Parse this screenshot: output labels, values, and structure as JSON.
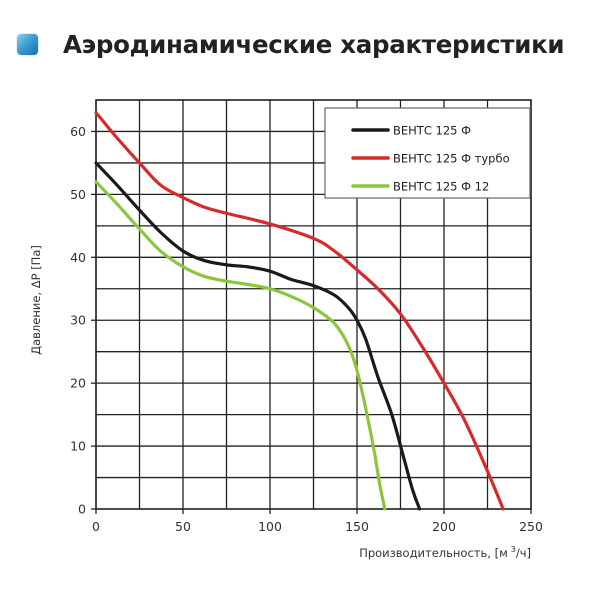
{
  "header": {
    "title": "Аэродинамические характеристики",
    "icon": "blue-square-icon"
  },
  "chart_data": {
    "type": "line",
    "title": "Аэродинамические характеристики",
    "xlabel": "Производительность, [м³/ч]",
    "ylabel": "Давление, ΔP [Па]",
    "xlim": [
      0,
      250
    ],
    "ylim": [
      0,
      65
    ],
    "xticks": [
      0,
      50,
      100,
      150,
      200,
      250
    ],
    "yticks": [
      0,
      10,
      20,
      30,
      40,
      50,
      60
    ],
    "grid": true,
    "grid_x_step": 25,
    "grid_y_step": 5,
    "legend_position": "upper right",
    "series": [
      {
        "name": "ВЕНТС 125 Ф",
        "color": "#1a1a1a",
        "x": [
          0,
          12,
          25,
          37,
          50,
          62,
          75,
          87,
          100,
          112,
          125,
          137,
          145,
          150,
          155,
          162,
          170,
          177,
          182,
          186
        ],
        "y": [
          55,
          51.5,
          47.5,
          44,
          41,
          39.5,
          38.8,
          38.5,
          37.8,
          36.5,
          35.5,
          34,
          32,
          30,
          27,
          21,
          15,
          8,
          3,
          0
        ]
      },
      {
        "name": "ВЕНТС 125 Ф турбо",
        "color": "#d62b2b",
        "x": [
          0,
          12,
          25,
          37,
          50,
          62,
          75,
          100,
          125,
          137,
          150,
          162,
          175,
          187,
          200,
          212,
          225,
          234
        ],
        "y": [
          63,
          59,
          55,
          51.5,
          49.5,
          48,
          47,
          45.3,
          43,
          41,
          38,
          35,
          31,
          26,
          20,
          14,
          6,
          0
        ]
      },
      {
        "name": "ВЕНТС 125 Ф 12",
        "color": "#8cc63f",
        "x": [
          0,
          12,
          25,
          37,
          50,
          62,
          75,
          87,
          100,
          112,
          125,
          137,
          145,
          150,
          155,
          160,
          163,
          166
        ],
        "y": [
          52,
          48.5,
          44.5,
          41,
          38.5,
          37,
          36.2,
          35.7,
          35,
          33.8,
          32,
          29.5,
          26,
          22,
          16,
          9,
          4,
          0
        ]
      }
    ]
  },
  "legend": {
    "items": [
      {
        "label": "ВЕНТС 125 Ф",
        "color": "#1a1a1a"
      },
      {
        "label": "ВЕНТС 125 Ф турбо",
        "color": "#d62b2b"
      },
      {
        "label": "ВЕНТС 125 Ф 12",
        "color": "#8cc63f"
      }
    ]
  },
  "axes": {
    "x_label_main": "Производительность, [м",
    "x_label_sup": "3",
    "x_label_end": "/ч]",
    "y_label": "Давление, ΔP [Па]"
  }
}
